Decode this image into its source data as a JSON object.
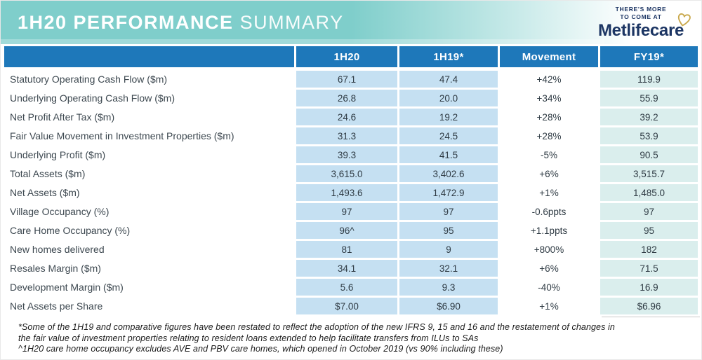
{
  "banner": {
    "title_bold": "1H20 PERFORMANCE",
    "title_light": "SUMMARY"
  },
  "logo": {
    "tagline_line1": "THERE'S MORE",
    "tagline_line2": "TO COME AT",
    "brand": "Metlifecare"
  },
  "colors": {
    "banner_teal": "#7fcecb",
    "header_blue": "#1e78ba",
    "cell_light_blue": "#c5e0f2",
    "cell_light_teal": "#daeeed",
    "brand_navy": "#1c3563",
    "heart_gold": "#c9a84c"
  },
  "table": {
    "columns": [
      "",
      "1H20",
      "1H19*",
      "Movement",
      "FY19*"
    ],
    "rows": [
      {
        "label": "Statutory Operating Cash Flow ($m)",
        "h1_20": "67.1",
        "h1_19": "47.4",
        "movement": "+42%",
        "fy19": "119.9"
      },
      {
        "label": "Underlying Operating Cash Flow ($m)",
        "h1_20": "26.8",
        "h1_19": "20.0",
        "movement": "+34%",
        "fy19": "55.9"
      },
      {
        "label": "Net Profit After Tax ($m)",
        "h1_20": "24.6",
        "h1_19": "19.2",
        "movement": "+28%",
        "fy19": "39.2"
      },
      {
        "label": "Fair Value Movement in Investment Properties ($m)",
        "h1_20": "31.3",
        "h1_19": "24.5",
        "movement": "+28%",
        "fy19": "53.9"
      },
      {
        "label": "Underlying Profit ($m)",
        "h1_20": "39.3",
        "h1_19": "41.5",
        "movement": "-5%",
        "fy19": "90.5"
      },
      {
        "label": "Total Assets ($m)",
        "h1_20": "3,615.0",
        "h1_19": "3,402.6",
        "movement": "+6%",
        "fy19": "3,515.7"
      },
      {
        "label": "Net Assets ($m)",
        "h1_20": "1,493.6",
        "h1_19": "1,472.9",
        "movement": "+1%",
        "fy19": "1,485.0"
      },
      {
        "label": "Village Occupancy (%)",
        "h1_20": "97",
        "h1_19": "97",
        "movement": "-0.6ppts",
        "fy19": "97"
      },
      {
        "label": "Care Home Occupancy (%)",
        "h1_20": "96^",
        "h1_19": "95",
        "movement": "+1.1ppts",
        "fy19": "95"
      },
      {
        "label": "New homes delivered",
        "h1_20": "81",
        "h1_19": "9",
        "movement": "+800%",
        "fy19": "182"
      },
      {
        "label": "Resales Margin ($m)",
        "h1_20": "34.1",
        "h1_19": "32.1",
        "movement": "+6%",
        "fy19": "71.5"
      },
      {
        "label": "Development Margin ($m)",
        "h1_20": "5.6",
        "h1_19": "9.3",
        "movement": "-40%",
        "fy19": "16.9"
      },
      {
        "label": "Net Assets per Share",
        "h1_20": "$7.00",
        "h1_19": "$6.90",
        "movement": "+1%",
        "fy19": "$6.96"
      }
    ]
  },
  "footnotes": [
    "*Some of the 1H19 and comparative figures have been restated to reflect the adoption of the new IFRS 9, 15 and 16 and the restatement of changes in",
    "the fair value  of investment properties relating to resident loans extended to help facilitate transfers from ILUs to SAs",
    "^1H20 care home occupancy excludes AVE and PBV care homes, which opened in October 2019 (vs 90% including these)"
  ]
}
